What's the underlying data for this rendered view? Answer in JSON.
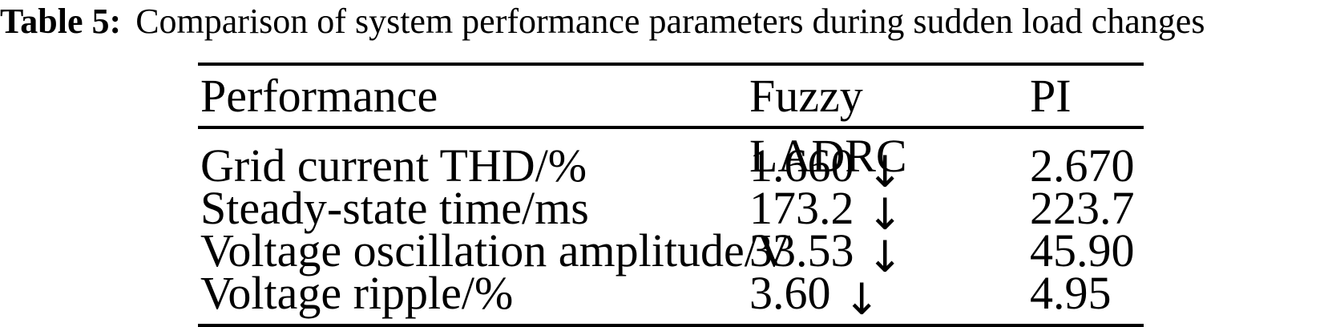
{
  "caption": {
    "label": "Table 5:",
    "text": "Comparison of system performance parameters during sudden load changes"
  },
  "table": {
    "header": {
      "performance": "Performance",
      "fuzzy_ladrc": "Fuzzy LADRC",
      "pi": "PI"
    },
    "rows": [
      {
        "label": "Grid current THD/%",
        "fuzzy_value": "1.660",
        "arrow": "↓",
        "pi_value": "2.670"
      },
      {
        "label": "Steady-state time/ms",
        "fuzzy_value": "173.2",
        "arrow": "↓",
        "pi_value": "223.7"
      },
      {
        "label": "Voltage oscillation amplitude/V",
        "fuzzy_value": "33.53",
        "arrow": "↓",
        "pi_value": "45.90"
      },
      {
        "label": "Voltage ripple/%",
        "fuzzy_value": "3.60",
        "arrow": "↓",
        "pi_value": "4.95"
      }
    ],
    "colors": {
      "text": "#000000",
      "background": "#ffffff",
      "rule": "#000000"
    }
  }
}
